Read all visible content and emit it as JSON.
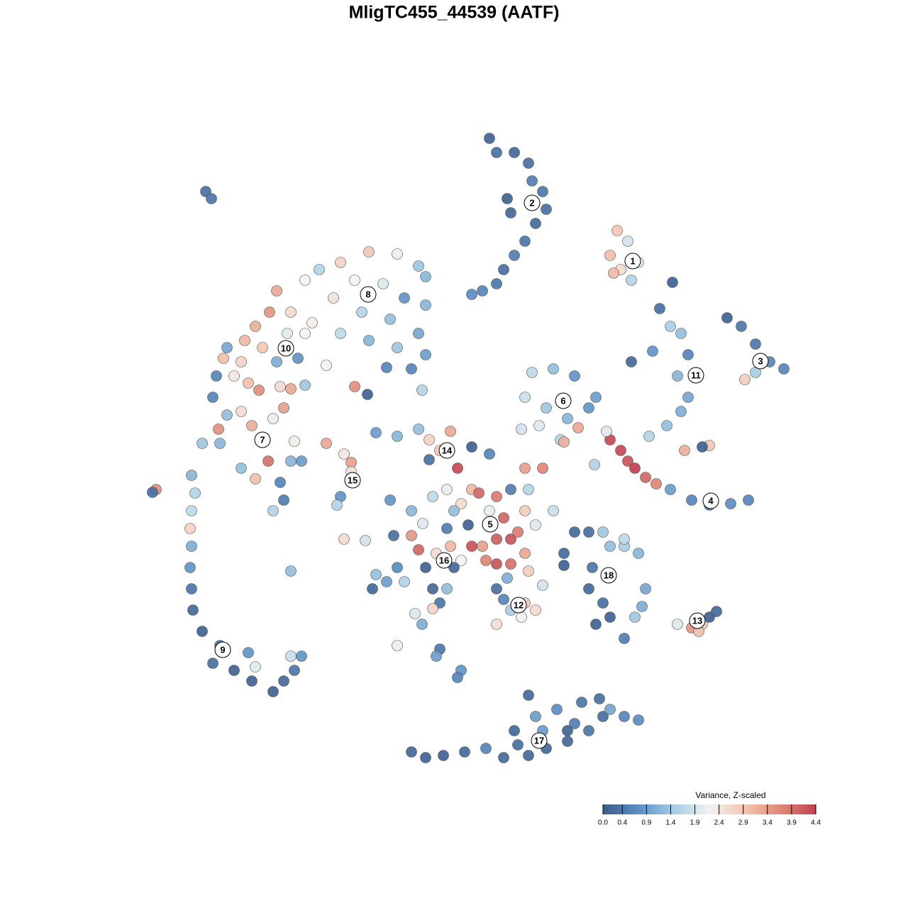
{
  "chart_data": {
    "type": "scatter",
    "title": "MligTC455_44539 (AATF)",
    "xlim": [
      -50,
      50
    ],
    "ylim": [
      -50,
      50
    ],
    "clim": [
      0,
      4.4
    ],
    "colorscale": [
      "#3b5b8a",
      "#5b8fc5",
      "#a5cde3",
      "#f2f2f2",
      "#f3c6b0",
      "#e08977",
      "#c2404f"
    ],
    "colorbar": {
      "title": "Variance, Z-scaled",
      "ticks": [
        {
          "value": 0,
          "label": "0.0"
        },
        0.4,
        0.9,
        1.4,
        1.9,
        2.4,
        2.9,
        3.4,
        3.9,
        4.4
      ]
    },
    "x": [
      5,
      6,
      8.5,
      10.5,
      11,
      12.5,
      13,
      11.5,
      10,
      8.5,
      7,
      6,
      4,
      2.5,
      8,
      7.5,
      23,
      24.5,
      22,
      23.5,
      26,
      25,
      22.5,
      29,
      30.5,
      32,
      28,
      25,
      33,
      31.5,
      33,
      32,
      30,
      27.5,
      32.5,
      36,
      35,
      30.8,
      38.5,
      40.5,
      42.5,
      44.5,
      46.5,
      42.5,
      41,
      22,
      23.5,
      24.5,
      25.5,
      27,
      28.5,
      30.5,
      33.5,
      36,
      39,
      41.5,
      21.5,
      19.8,
      11,
      14,
      17,
      10,
      13,
      16,
      19,
      12,
      15,
      17.5,
      15.5,
      9.5,
      20,
      -12,
      -8,
      -5,
      -4,
      -16,
      -19,
      -14,
      -10,
      -7,
      -4,
      -17,
      -13,
      -9,
      -5,
      -4,
      -6,
      -8,
      -12,
      -16,
      -20,
      -18,
      -4.5,
      -9.5,
      -14,
      -12.2,
      -21,
      -25,
      -26,
      -28,
      -23,
      -21,
      -29.5,
      -32,
      -23.5,
      -27,
      -30,
      -32.5,
      -25,
      -22,
      -33.5,
      -31,
      -29,
      -27.5,
      -24.5,
      -23,
      -34,
      -32,
      -30,
      -28.5,
      -25.5,
      -24,
      -33.2,
      -35.5,
      -33,
      -30,
      -28,
      -26.2,
      -24.5,
      -23,
      -21.5,
      -25.5,
      -24,
      -22.5,
      -21,
      -37,
      -36.5,
      -37,
      -37.2,
      -37,
      -37.2,
      -37,
      -36.8,
      -35.5,
      -33,
      -34,
      -31,
      -29,
      -28.5,
      -25.5,
      -24,
      -22.5,
      -21.5,
      -28,
      -23,
      -35,
      -34.2,
      -42,
      -42.5,
      -23,
      -18,
      -15.5,
      -14.5,
      -14.5,
      -16,
      -16.5,
      -15.5,
      -12.5,
      -11,
      -8,
      -5,
      -3.5,
      -0.5,
      -2,
      -3.5,
      0.5,
      2.5,
      5,
      6,
      5,
      7,
      8,
      6,
      4,
      2,
      1,
      2.5,
      3.5,
      10,
      11.5,
      14,
      10,
      12.5,
      10.5,
      8,
      9,
      0,
      -1,
      6,
      8,
      10,
      4.5,
      2.5,
      10.5,
      -8.5,
      -6,
      -5,
      -4,
      -2.5,
      -0.5,
      1,
      0,
      -8,
      -11,
      -11.5,
      -9.5,
      -7,
      -3,
      -1,
      -2,
      -3,
      -4.5,
      -5.5,
      -8,
      -2,
      -2.5,
      1,
      0.5,
      -9,
      -3,
      -6,
      -1,
      -4.4,
      6,
      7,
      8,
      10,
      11.5,
      6,
      9.5,
      12.5,
      7.5,
      17,
      19,
      21,
      22,
      24,
      26,
      19.5,
      19,
      21,
      20,
      22,
      24,
      25.5,
      27,
      26.5,
      15.5,
      15.5,
      24,
      31.5,
      33.5,
      35,
      36,
      37,
      34.5,
      -6,
      -4,
      -1.5,
      1.5,
      4.5,
      7,
      9,
      10.5,
      13,
      16,
      8.5,
      11.5,
      14.5,
      17,
      19,
      21,
      18,
      22,
      24,
      26,
      10.5,
      20.5,
      12.5,
      16
    ],
    "y": [
      44.5,
      42.5,
      42.5,
      41,
      38.5,
      37,
      34.5,
      32.5,
      30,
      28,
      26,
      24,
      23,
      22.5,
      34,
      36,
      31.5,
      30,
      28,
      26,
      27,
      24.5,
      25.5,
      20.5,
      18,
      17,
      14.5,
      13,
      14,
      11,
      8,
      6,
      4,
      2.5,
      0.5,
      1.2,
      1,
      24.2,
      19.2,
      18,
      15.5,
      13,
      12,
      11.5,
      10.5,
      2,
      0.5,
      -1,
      -2,
      -3.3,
      -4.2,
      -5,
      -6.5,
      -7.2,
      -7,
      -6.5,
      3.2,
      -1.5,
      11.5,
      12,
      11,
      8,
      6.5,
      5,
      6.5,
      4,
      2,
      3.7,
      1.7,
      3.5,
      8,
      28.5,
      28.2,
      26.5,
      25,
      27,
      26,
      24.5,
      24,
      22,
      21,
      22,
      20,
      19,
      17,
      14,
      12,
      15,
      16,
      17,
      18.5,
      12.5,
      9,
      12.2,
      9.5,
      8.4,
      24.5,
      23,
      20,
      18,
      20,
      17,
      16,
      15,
      17,
      15,
      13,
      13.5,
      13,
      13.5,
      11,
      11,
      10,
      9,
      9.5,
      9.2,
      8,
      5.5,
      6,
      4,
      5,
      6.5,
      3.5,
      1.5,
      1.5,
      -2,
      -3.5,
      -1,
      -4,
      -1,
      -1,
      -8,
      -6.5,
      1.8,
      9.7,
      -3,
      -5.5,
      -8,
      -10.5,
      -13,
      -16,
      -19,
      -22,
      -25,
      -27,
      -29.5,
      -30.5,
      -28,
      -32,
      -33.5,
      -32,
      -30.5,
      -28.5,
      -30,
      -28.5,
      37,
      36,
      -5,
      -5.4,
      -16.5,
      1.5,
      0,
      -1.2,
      -2.5,
      -6,
      -7.2,
      -12,
      -12.2,
      3,
      2.5,
      3.5,
      2,
      3.2,
      0.5,
      -0.8,
      -2,
      1,
      0,
      -6,
      -8,
      -9,
      -12,
      -12,
      -13,
      -10,
      -7,
      -5,
      -5.5,
      -8,
      -10,
      -8,
      -2,
      -2,
      -5,
      -5,
      -11,
      -8,
      -5,
      -15.5,
      -15.5,
      -14,
      -15,
      -13,
      -16.5,
      -11.5,
      -11.5,
      -13.5,
      -16,
      -14,
      -13,
      -15,
      -16,
      -16,
      -17,
      -19,
      -18,
      -18,
      -19,
      -19,
      -21,
      -21.8,
      -24,
      -22.5,
      -27,
      -27.5,
      -28.5,
      -30.5,
      -31.5,
      -6.5,
      -6,
      -8,
      -10.5,
      -9.8,
      -19,
      -20.5,
      -22,
      -21,
      -22,
      -24,
      -23,
      -18.5,
      -17.5,
      -11,
      -11,
      -11,
      -13,
      -13,
      -14,
      -16,
      -19,
      -21,
      -24,
      -23,
      -26,
      -23,
      -19,
      -21.5,
      -14,
      -15.7,
      -12,
      -24,
      -24.5,
      -24,
      -23,
      -22.2,
      -25,
      -42,
      -42.8,
      -42.5,
      -42,
      -41.5,
      -42.8,
      -41,
      -42.5,
      -41.5,
      -40.5,
      -39,
      -37,
      -36,
      -38,
      -39,
      -37,
      -35,
      -36,
      -37,
      -37.5,
      -34,
      -34.5,
      -39,
      -39
    ],
    "values": [
      0.1,
      0.3,
      0.2,
      0.3,
      0.5,
      0.4,
      0.3,
      0.2,
      0.4,
      0.5,
      0.3,
      0.4,
      0.6,
      0.7,
      0.2,
      0.1,
      2.9,
      1.9,
      3.0,
      2.6,
      2.0,
      1.6,
      3.1,
      0.3,
      1.5,
      1.3,
      0.8,
      0.2,
      0.6,
      1.2,
      1.0,
      1.1,
      1.3,
      1.6,
      3.2,
      2.9,
      0.1,
      0.1,
      0.1,
      0.4,
      0.4,
      0.6,
      0.6,
      1.5,
      2.8,
      4.3,
      4.3,
      4.2,
      4.4,
      4.0,
      3.7,
      0.9,
      0.6,
      0.5,
      0.7,
      0.6,
      2.0,
      1.6,
      1.7,
      1.3,
      0.8,
      1.8,
      1.4,
      1.2,
      0.8,
      2.0,
      1.6,
      3.3,
      3.2,
      1.9,
      0.9,
      2.9,
      2.3,
      1.4,
      1.2,
      2.7,
      1.6,
      2.2,
      2.0,
      0.8,
      1.2,
      2.5,
      1.6,
      1.3,
      1.0,
      0.9,
      0.6,
      1.4,
      1.2,
      1.7,
      2.3,
      2.2,
      1.6,
      0.6,
      3.6,
      0.1,
      2.2,
      3.3,
      3.5,
      3.2,
      2.6,
      2.2,
      3.1,
      1.0,
      2.0,
      2.9,
      2.7,
      3.0,
      1.1,
      0.8,
      0.6,
      2.4,
      3.0,
      3.6,
      2.6,
      3.3,
      0.6,
      1.3,
      2.6,
      3.2,
      2.1,
      3.4,
      3.6,
      1.4,
      1.2,
      1.3,
      3.0,
      3.9,
      0.6,
      1.2,
      0.9,
      1.6,
      0.5,
      2.3,
      1.4,
      1.2,
      1.6,
      1.7,
      2.7,
      1.1,
      0.8,
      0.4,
      0.2,
      0.1,
      0.3,
      0.3,
      0.1,
      0.8,
      0.1,
      0.1,
      0.2,
      0.4,
      0.8,
      2.0,
      1.8,
      0.3,
      0.4,
      3.6,
      0.3,
      1.3,
      3.3,
      2.4,
      3.4,
      2.5,
      0.8,
      1.6,
      2.6,
      1.9,
      0.9,
      1.2,
      1.3,
      2.7,
      3.3,
      2.9,
      0.3,
      4.3,
      0.1,
      0.6,
      3.8,
      2.1,
      4.0,
      4.2,
      4.1,
      3.4,
      0.1,
      2.6,
      3.1,
      4.0,
      2.8,
      2.0,
      1.8,
      3.4,
      3.7,
      1.6,
      0.5,
      3.8,
      1.3,
      2.1,
      4.2,
      3.9,
      3.3,
      3.7,
      4.2,
      2.8,
      0.3,
      3.5,
      4.0,
      0.1,
      2.6,
      3.1,
      2.2,
      0.2,
      0.7,
      1.3,
      0.2,
      0.9,
      1.6,
      0.2,
      1.3,
      0.4,
      2.7,
      1.1,
      2.0,
      2.3,
      0.4,
      0.9,
      0.8,
      0.6,
      0.8,
      1.7,
      1.2,
      0.5,
      2.0,
      0.3,
      0.6,
      1.5,
      2.9,
      2.6,
      2.5,
      2.2,
      1.9,
      1.1,
      0.2,
      0.3,
      1.4,
      1.3,
      1.5,
      1.2,
      0.4,
      0.2,
      0.3,
      0.1,
      0.1,
      0.5,
      1.4,
      1.0,
      1.1,
      0.2,
      0.1,
      1.7,
      2.0,
      3.5,
      2.8,
      0.1,
      0.2,
      3.0,
      0.2,
      0.1,
      0.1,
      0.2,
      0.6,
      0.2,
      0.3,
      0.2,
      0.2,
      0.2,
      0.2,
      0.9,
      0.7,
      0.5,
      0.4,
      0.3,
      0.4,
      1.0,
      0.6,
      0.7,
      0.2,
      0.3,
      0.9,
      0.1
    ],
    "annotations": [
      {
        "text": "1",
        "x": 25.2,
        "y": 27.2
      },
      {
        "text": "2",
        "x": 11,
        "y": 35.4
      },
      {
        "text": "3",
        "x": 43.2,
        "y": 13.1
      },
      {
        "text": "4",
        "x": 36.2,
        "y": -6.6
      },
      {
        "text": "5",
        "x": 5.1,
        "y": -9.9
      },
      {
        "text": "6",
        "x": 15.4,
        "y": 7.5
      },
      {
        "text": "7",
        "x": -27,
        "y": 2
      },
      {
        "text": "8",
        "x": -12.1,
        "y": 22.5
      },
      {
        "text": "9",
        "x": -32.6,
        "y": -27.6
      },
      {
        "text": "10",
        "x": -23.7,
        "y": 14.9
      },
      {
        "text": "11",
        "x": 34.1,
        "y": 11.1
      },
      {
        "text": "12",
        "x": 9.1,
        "y": -21.3
      },
      {
        "text": "13",
        "x": 34.3,
        "y": -23.5
      },
      {
        "text": "14",
        "x": -1,
        "y": 0.5
      },
      {
        "text": "15",
        "x": -14.3,
        "y": -3.7
      },
      {
        "text": "16",
        "x": -1.4,
        "y": -15
      },
      {
        "text": "17",
        "x": 12,
        "y": -40.4
      },
      {
        "text": "18",
        "x": 21.8,
        "y": -17.1
      }
    ]
  }
}
